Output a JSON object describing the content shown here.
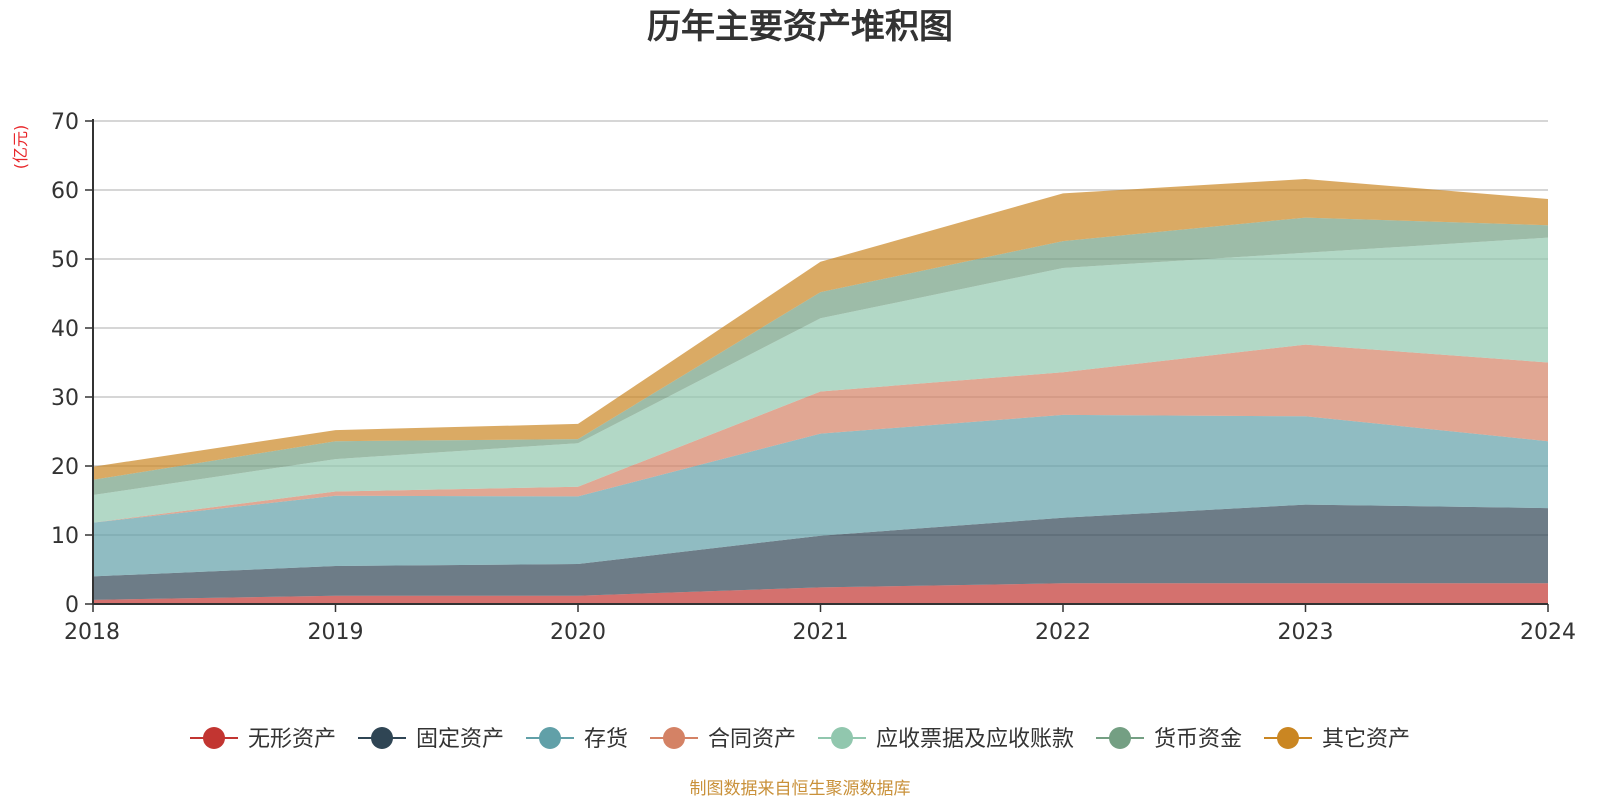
{
  "chart_data": {
    "type": "area",
    "stacked": true,
    "title": "历年主要资产堆积图",
    "y_unit_label": "(亿元)",
    "x": [
      "2018",
      "2019",
      "2020",
      "2021",
      "2022",
      "2023",
      "2024"
    ],
    "ylim": [
      0,
      70
    ],
    "yticks": [
      0,
      10,
      20,
      30,
      40,
      50,
      60,
      70
    ],
    "grid": true,
    "legend_position": "bottom",
    "series": [
      {
        "name": "无形资产",
        "color": "#c23531",
        "values": [
          0.6,
          1.2,
          1.2,
          2.4,
          3.0,
          3.0,
          3.0
        ]
      },
      {
        "name": "固定资产",
        "color": "#2f4554",
        "values": [
          3.4,
          4.3,
          4.6,
          7.5,
          9.5,
          11.4,
          10.9
        ]
      },
      {
        "name": "存货",
        "color": "#61a0a8",
        "values": [
          7.8,
          10.2,
          9.8,
          14.8,
          14.9,
          12.8,
          9.7
        ]
      },
      {
        "name": "合同资产",
        "color": "#d48265",
        "values": [
          0.0,
          0.6,
          1.4,
          6.1,
          6.2,
          10.4,
          11.4
        ]
      },
      {
        "name": "应收票据及应收账款",
        "color": "#91c7ae",
        "values": [
          4.0,
          4.7,
          6.3,
          10.6,
          15.1,
          13.3,
          18.1
        ]
      },
      {
        "name": "货币资金",
        "color": "#749f83",
        "values": [
          2.2,
          2.6,
          0.6,
          3.8,
          3.9,
          5.1,
          1.8
        ]
      },
      {
        "name": "其它资产",
        "color": "#ca8622",
        "values": [
          1.9,
          1.6,
          2.2,
          4.4,
          6.9,
          5.6,
          3.8
        ]
      }
    ]
  },
  "footer": {
    "source": "制图数据来自恒生聚源数据库"
  }
}
